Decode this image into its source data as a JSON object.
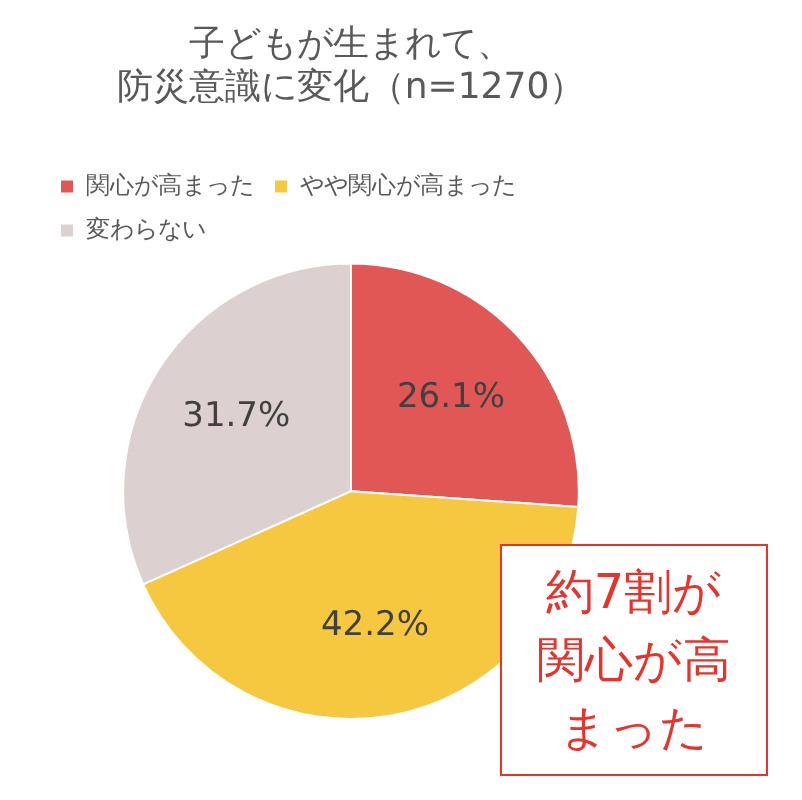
{
  "chart_data": {
    "type": "pie",
    "title": "子どもが生まれて、防災意識に変化（n=1270）",
    "categories": [
      "関心が高まった",
      "やや関心が高まった",
      "変わらない"
    ],
    "values": [
      26.1,
      42.2,
      31.7
    ],
    "colors": [
      "#e15756",
      "#f6c83f",
      "#dcd0d0"
    ],
    "value_labels": [
      "26.1%",
      "42.2%",
      "31.7%"
    ],
    "legend": "top",
    "annotations": [
      "約7割が関心が高まった"
    ]
  }
}
